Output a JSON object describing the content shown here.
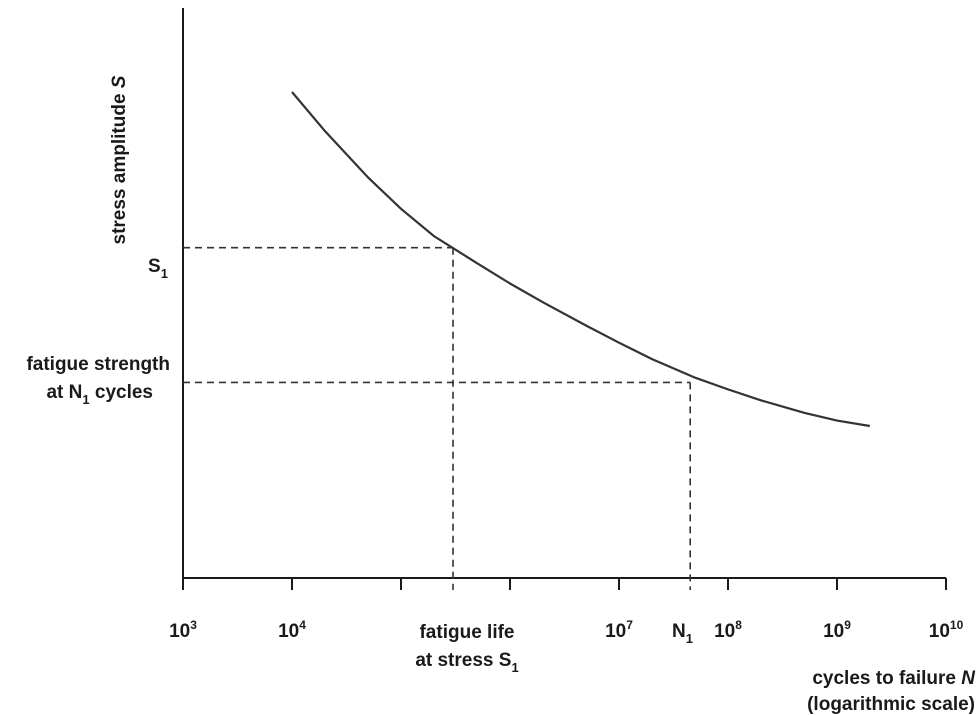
{
  "chart_data": {
    "type": "line",
    "title": "",
    "xlabel_line1_prefix": "cycles to failure ",
    "xlabel_line1_var": "N",
    "xlabel_line2": "(logarithmic scale)",
    "ylabel_prefix": "stress amplitude ",
    "ylabel_var": "S",
    "x_scale": "log",
    "xlim": [
      1000,
      10000000000
    ],
    "xticks": [
      1000,
      10000,
      100000,
      1000000,
      10000000,
      100000000,
      1000000000,
      10000000000
    ],
    "xtick_labels": [
      {
        "base": "10",
        "exp": "3"
      },
      {
        "base": "10",
        "exp": "4"
      },
      {
        "base": "",
        "exp": ""
      },
      {
        "base": "",
        "exp": ""
      },
      {
        "base": "10",
        "exp": "7"
      },
      {
        "base": "10",
        "exp": "8"
      },
      {
        "base": "10",
        "exp": "9"
      },
      {
        "base": "10",
        "exp": "10"
      }
    ],
    "yticks_shown": false,
    "grid": false,
    "series": [
      {
        "x": [
          10000,
          20000,
          50000,
          100000,
          200000,
          500000,
          1000000,
          2000000,
          5000000,
          10000000,
          20000000,
          50000000,
          100000000,
          200000000,
          500000000,
          1000000000,
          2000000000
        ],
        "y": [
          0.9,
          0.85,
          0.79,
          0.75,
          0.715,
          0.68,
          0.654,
          0.63,
          0.6,
          0.578,
          0.557,
          0.533,
          0.518,
          0.504,
          0.488,
          0.478,
          0.471
        ]
      }
    ],
    "annotations": {
      "s1": {
        "label_base": "S",
        "label_sub": "1",
        "stress": 0.7,
        "cycles": 300000
      },
      "fatigue_life": {
        "line1": "fatigue life",
        "line2_prefix": "at stress S",
        "line2_sub": "1"
      },
      "n1": {
        "label_base": "N",
        "label_sub": "1",
        "cycles": 45000000,
        "stress": 0.527
      },
      "fatigue_strength": {
        "line1": "fatigue strength",
        "line2_prefix": "at N",
        "line2_sub": "1",
        "line2_suffix": " cycles"
      }
    }
  }
}
